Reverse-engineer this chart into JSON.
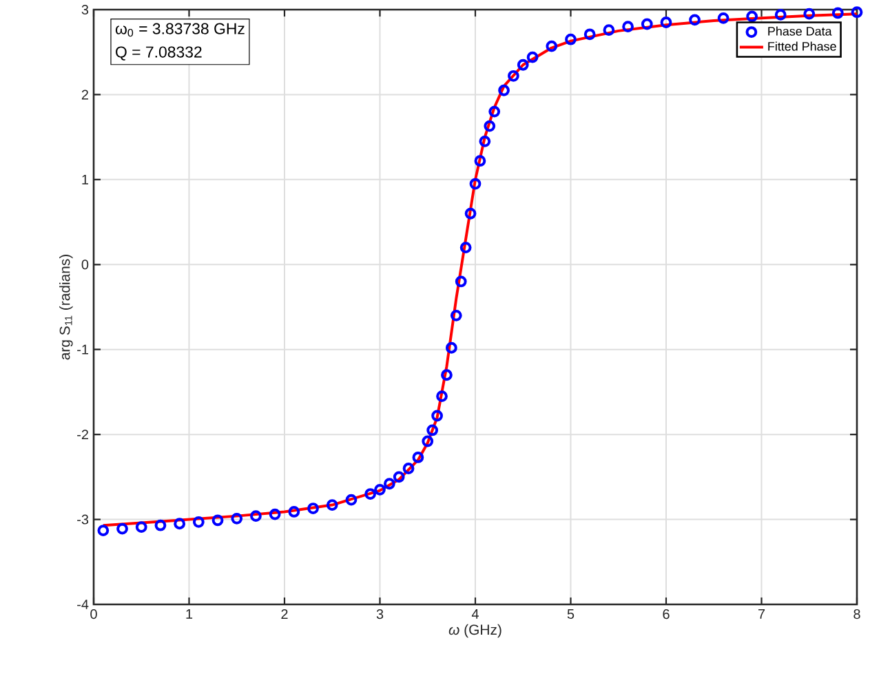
{
  "chart_data": {
    "type": "scatter",
    "xlabel": "*ω* (GHz)",
    "ylabel": "arg S$_{11}$ (radians)",
    "annotations": [
      "ω$_{0}$ = 3.83738 GHz",
      "Q = 7.08332"
    ],
    "xlim": [
      0,
      8
    ],
    "ylim": [
      -4,
      3
    ],
    "xticks": [
      0,
      1,
      2,
      3,
      4,
      5,
      6,
      7,
      8
    ],
    "yticks": [
      -4,
      -3,
      -2,
      -1,
      0,
      1,
      2,
      3
    ],
    "grid": true,
    "legend": "top right",
    "series": [
      {
        "name": "Phase Data",
        "marker": "circle",
        "color": "#0000ff",
        "x": [
          0.1,
          0.3,
          0.5,
          0.7,
          0.9,
          1.1,
          1.3,
          1.5,
          1.7,
          1.9,
          2.1,
          2.3,
          2.5,
          2.7,
          2.9,
          3.0,
          3.1,
          3.2,
          3.3,
          3.4,
          3.5,
          3.55,
          3.6,
          3.65,
          3.7,
          3.75,
          3.8,
          3.85,
          3.9,
          3.95,
          4.0,
          4.05,
          4.1,
          4.15,
          4.2,
          4.3,
          4.4,
          4.5,
          4.6,
          4.8,
          5.0,
          5.2,
          5.4,
          5.6,
          5.8,
          6.0,
          6.3,
          6.6,
          6.9,
          7.2,
          7.5,
          7.8,
          8.0
        ],
        "values": [
          -3.13,
          -3.11,
          -3.09,
          -3.07,
          -3.05,
          -3.03,
          -3.01,
          -2.99,
          -2.96,
          -2.94,
          -2.91,
          -2.87,
          -2.83,
          -2.77,
          -2.7,
          -2.65,
          -2.58,
          -2.5,
          -2.4,
          -2.27,
          -2.08,
          -1.95,
          -1.78,
          -1.55,
          -1.3,
          -0.98,
          -0.6,
          -0.2,
          0.2,
          0.6,
          0.95,
          1.22,
          1.45,
          1.63,
          1.8,
          2.05,
          2.22,
          2.35,
          2.44,
          2.57,
          2.65,
          2.71,
          2.76,
          2.8,
          2.83,
          2.85,
          2.88,
          2.9,
          2.92,
          2.94,
          2.95,
          2.96,
          2.97
        ]
      },
      {
        "name": "Fitted Phase",
        "type": "line",
        "marker": "none",
        "color": "#ff0000",
        "x": [
          0.1,
          0.5,
          1,
          1.5,
          2,
          2.5,
          3,
          3.2,
          3.4,
          3.5,
          3.6,
          3.7,
          3.8,
          3.9,
          4.0,
          4.1,
          4.2,
          4.3,
          4.5,
          4.8,
          5,
          5.5,
          6,
          6.5,
          7,
          7.5,
          8
        ],
        "values": [
          -3.07,
          -3.04,
          -3.0,
          -2.96,
          -2.91,
          -2.83,
          -2.66,
          -2.53,
          -2.3,
          -2.1,
          -1.8,
          -1.2,
          -0.4,
          0.3,
          1.0,
          1.5,
          1.85,
          2.1,
          2.35,
          2.55,
          2.63,
          2.75,
          2.82,
          2.87,
          2.9,
          2.93,
          2.95
        ]
      }
    ]
  }
}
